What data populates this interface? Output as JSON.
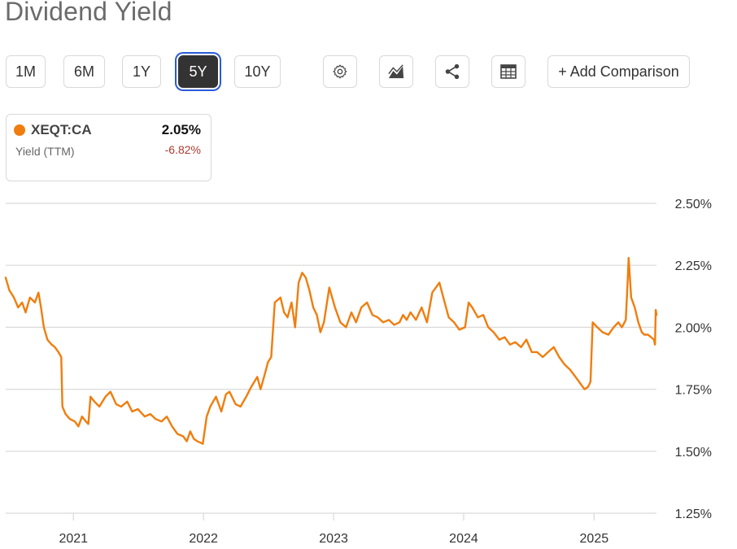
{
  "page": {
    "title": "Dividend Yield"
  },
  "toolbar": {
    "ranges": [
      {
        "label": "1M",
        "active": false
      },
      {
        "label": "6M",
        "active": false
      },
      {
        "label": "1Y",
        "active": false
      },
      {
        "label": "5Y",
        "active": true
      },
      {
        "label": "10Y",
        "active": false
      }
    ],
    "icons": [
      "gear-icon",
      "chart-type-icon",
      "share-icon",
      "table-icon"
    ],
    "add_comparison_label": "+ Add Comparison"
  },
  "legend_card": {
    "ticker": "XEQT:CA",
    "metric": "Yield (TTM)",
    "value": "2.05%",
    "change": "-6.82%",
    "dot_color": "#f07d0e"
  },
  "colors": {
    "series": "#f07d0e",
    "grid": "#d9d9d9",
    "change_negative": "#b03a2e",
    "active_button_bg": "#333333",
    "active_button_ring": "#2a5bd7"
  },
  "chart_data": {
    "type": "line",
    "title": "Dividend Yield",
    "xlabel": "",
    "ylabel": "",
    "ylim": [
      1.25,
      2.5
    ],
    "y_axis_side": "right",
    "ytick_values": [
      1.25,
      1.5,
      1.75,
      2.0,
      2.25,
      2.5
    ],
    "ytick_labels": [
      "1.25%",
      "1.50%",
      "1.75%",
      "2.00%",
      "2.25%",
      "2.50%"
    ],
    "xlim": [
      "2020-06-25",
      "2025-06-25"
    ],
    "xtick_values": [
      "2021-01-01",
      "2022-01-01",
      "2023-01-01",
      "2024-01-01",
      "2025-01-01"
    ],
    "xtick_labels": [
      "2021",
      "2022",
      "2023",
      "2024",
      "2025"
    ],
    "grid": true,
    "series": [
      {
        "name": "XEQT:CA",
        "color": "#f07d0e",
        "points": [
          [
            "2020-06-25",
            2.2
          ],
          [
            "2020-07-05",
            2.15
          ],
          [
            "2020-07-18",
            2.12
          ],
          [
            "2020-07-30",
            2.08
          ],
          [
            "2020-08-10",
            2.1
          ],
          [
            "2020-08-20",
            2.06
          ],
          [
            "2020-09-01",
            2.12
          ],
          [
            "2020-09-15",
            2.1
          ],
          [
            "2020-09-25",
            2.14
          ],
          [
            "2020-10-02",
            2.08
          ],
          [
            "2020-10-10",
            2.0
          ],
          [
            "2020-10-20",
            1.95
          ],
          [
            "2020-11-01",
            1.93
          ],
          [
            "2020-11-10",
            1.92
          ],
          [
            "2020-11-20",
            1.9
          ],
          [
            "2020-11-28",
            1.88
          ],
          [
            "2020-12-01",
            1.68
          ],
          [
            "2020-12-10",
            1.65
          ],
          [
            "2020-12-22",
            1.63
          ],
          [
            "2021-01-05",
            1.62
          ],
          [
            "2021-01-15",
            1.6
          ],
          [
            "2021-01-25",
            1.64
          ],
          [
            "2021-02-05",
            1.62
          ],
          [
            "2021-02-12",
            1.61
          ],
          [
            "2021-02-18",
            1.72
          ],
          [
            "2021-03-01",
            1.7
          ],
          [
            "2021-03-15",
            1.68
          ],
          [
            "2021-04-01",
            1.72
          ],
          [
            "2021-04-15",
            1.74
          ],
          [
            "2021-05-01",
            1.69
          ],
          [
            "2021-05-15",
            1.68
          ],
          [
            "2021-06-01",
            1.7
          ],
          [
            "2021-06-15",
            1.66
          ],
          [
            "2021-07-01",
            1.67
          ],
          [
            "2021-07-20",
            1.64
          ],
          [
            "2021-08-05",
            1.65
          ],
          [
            "2021-08-20",
            1.63
          ],
          [
            "2021-09-05",
            1.62
          ],
          [
            "2021-09-20",
            1.64
          ],
          [
            "2021-10-05",
            1.6
          ],
          [
            "2021-10-20",
            1.57
          ],
          [
            "2021-11-05",
            1.56
          ],
          [
            "2021-11-15",
            1.54
          ],
          [
            "2021-11-25",
            1.58
          ],
          [
            "2021-12-05",
            1.55
          ],
          [
            "2021-12-15",
            1.54
          ],
          [
            "2021-12-30",
            1.53
          ],
          [
            "2022-01-10",
            1.64
          ],
          [
            "2022-01-20",
            1.68
          ],
          [
            "2022-02-05",
            1.72
          ],
          [
            "2022-02-20",
            1.66
          ],
          [
            "2022-03-05",
            1.73
          ],
          [
            "2022-03-15",
            1.74
          ],
          [
            "2022-04-01",
            1.69
          ],
          [
            "2022-04-15",
            1.68
          ],
          [
            "2022-05-01",
            1.72
          ],
          [
            "2022-05-15",
            1.76
          ],
          [
            "2022-06-01",
            1.8
          ],
          [
            "2022-06-10",
            1.75
          ],
          [
            "2022-06-20",
            1.8
          ],
          [
            "2022-07-01",
            1.86
          ],
          [
            "2022-07-10",
            1.88
          ],
          [
            "2022-07-20",
            2.1
          ],
          [
            "2022-08-05",
            2.12
          ],
          [
            "2022-08-15",
            2.06
          ],
          [
            "2022-08-25",
            2.04
          ],
          [
            "2022-09-05",
            2.1
          ],
          [
            "2022-09-15",
            2.0
          ],
          [
            "2022-09-25",
            2.18
          ],
          [
            "2022-10-05",
            2.22
          ],
          [
            "2022-10-15",
            2.2
          ],
          [
            "2022-10-25",
            2.15
          ],
          [
            "2022-11-05",
            2.08
          ],
          [
            "2022-11-15",
            2.05
          ],
          [
            "2022-11-25",
            1.98
          ],
          [
            "2022-12-05",
            2.02
          ],
          [
            "2022-12-20",
            2.16
          ],
          [
            "2023-01-05",
            2.08
          ],
          [
            "2023-01-20",
            2.02
          ],
          [
            "2023-02-05",
            2.0
          ],
          [
            "2023-02-20",
            2.06
          ],
          [
            "2023-03-05",
            2.02
          ],
          [
            "2023-03-20",
            2.08
          ],
          [
            "2023-04-05",
            2.1
          ],
          [
            "2023-04-20",
            2.05
          ],
          [
            "2023-05-05",
            2.04
          ],
          [
            "2023-05-20",
            2.02
          ],
          [
            "2023-06-05",
            2.03
          ],
          [
            "2023-06-20",
            2.01
          ],
          [
            "2023-07-05",
            2.02
          ],
          [
            "2023-07-15",
            2.05
          ],
          [
            "2023-07-25",
            2.03
          ],
          [
            "2023-08-05",
            2.06
          ],
          [
            "2023-08-20",
            2.03
          ],
          [
            "2023-09-05",
            2.08
          ],
          [
            "2023-09-20",
            2.02
          ],
          [
            "2023-10-05",
            2.14
          ],
          [
            "2023-10-15",
            2.16
          ],
          [
            "2023-10-25",
            2.18
          ],
          [
            "2023-11-05",
            2.12
          ],
          [
            "2023-11-20",
            2.04
          ],
          [
            "2023-12-05",
            2.02
          ],
          [
            "2023-12-20",
            1.99
          ],
          [
            "2024-01-05",
            2.0
          ],
          [
            "2024-01-15",
            2.1
          ],
          [
            "2024-01-25",
            2.08
          ],
          [
            "2024-02-10",
            2.04
          ],
          [
            "2024-02-25",
            2.05
          ],
          [
            "2024-03-10",
            2.0
          ],
          [
            "2024-03-25",
            1.98
          ],
          [
            "2024-04-10",
            1.95
          ],
          [
            "2024-04-25",
            1.96
          ],
          [
            "2024-05-10",
            1.93
          ],
          [
            "2024-05-25",
            1.94
          ],
          [
            "2024-06-10",
            1.92
          ],
          [
            "2024-06-25",
            1.95
          ],
          [
            "2024-07-10",
            1.9
          ],
          [
            "2024-07-25",
            1.9
          ],
          [
            "2024-08-10",
            1.88
          ],
          [
            "2024-08-25",
            1.9
          ],
          [
            "2024-09-10",
            1.92
          ],
          [
            "2024-09-25",
            1.88
          ],
          [
            "2024-10-10",
            1.85
          ],
          [
            "2024-10-25",
            1.83
          ],
          [
            "2024-11-10",
            1.8
          ],
          [
            "2024-11-25",
            1.77
          ],
          [
            "2024-12-05",
            1.75
          ],
          [
            "2024-12-15",
            1.76
          ],
          [
            "2024-12-22",
            1.78
          ],
          [
            "2024-12-28",
            2.02
          ],
          [
            "2025-01-10",
            2.0
          ],
          [
            "2025-01-25",
            1.98
          ],
          [
            "2025-02-10",
            1.97
          ],
          [
            "2025-02-25",
            2.0
          ],
          [
            "2025-03-10",
            2.02
          ],
          [
            "2025-03-20",
            2.0
          ],
          [
            "2025-03-31",
            2.03
          ],
          [
            "2025-04-05",
            2.18
          ],
          [
            "2025-04-08",
            2.28
          ],
          [
            "2025-04-15",
            2.12
          ],
          [
            "2025-04-25",
            2.08
          ],
          [
            "2025-05-05",
            2.02
          ],
          [
            "2025-05-15",
            1.98
          ],
          [
            "2025-05-22",
            1.97
          ],
          [
            "2025-06-01",
            1.97
          ],
          [
            "2025-06-10",
            1.96
          ],
          [
            "2025-06-18",
            1.95
          ],
          [
            "2025-06-21",
            1.93
          ],
          [
            "2025-06-23",
            2.07
          ],
          [
            "2025-06-25",
            2.05
          ]
        ]
      }
    ]
  }
}
